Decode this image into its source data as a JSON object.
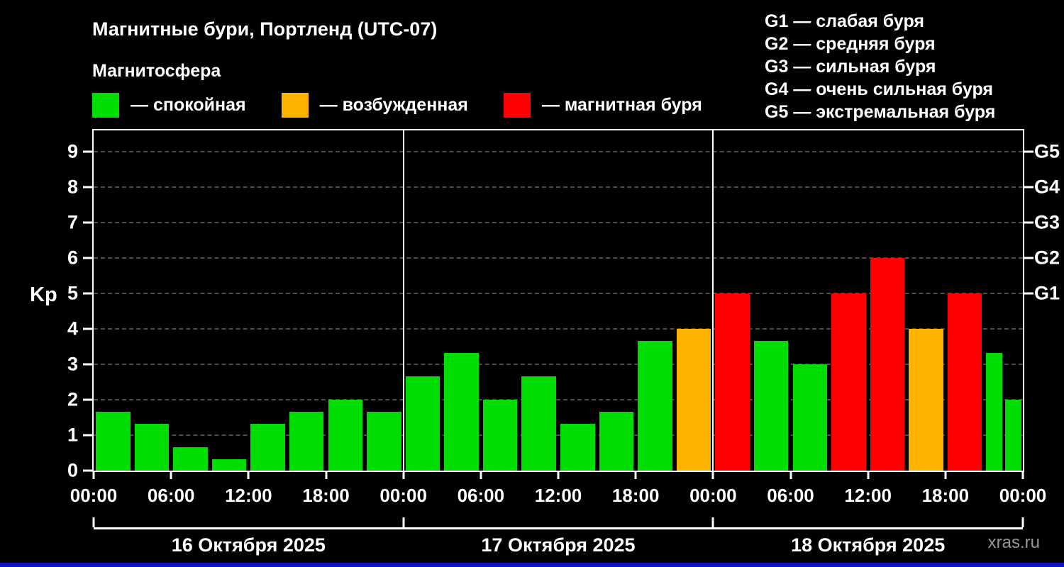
{
  "title": "Магнитные бури, Портленд (UTC-07)",
  "subtitle": "Магнитосфера",
  "legend": {
    "items": [
      {
        "label": "— спокойная",
        "color": "#00dd00"
      },
      {
        "label": "— возбужденная",
        "color": "#ffb300"
      },
      {
        "label": "— магнитная буря",
        "color": "#ff0000"
      }
    ]
  },
  "g_legend": {
    "items": [
      {
        "label": "G1 — слабая буря"
      },
      {
        "label": "G2 — средняя буря"
      },
      {
        "label": "G3 — сильная буря"
      },
      {
        "label": "G4 — очень сильная буря"
      },
      {
        "label": "G5 — экстремальная буря"
      }
    ]
  },
  "watermark": "xras.ru",
  "chart_data": {
    "type": "bar",
    "title": "Магнитные бури, Портленд (UTC-07)",
    "xlabel": "",
    "ylabel": "Kp",
    "ylim": [
      0,
      9.6
    ],
    "grid": "dashed horizontal",
    "yticks": [
      0,
      1,
      2,
      3,
      4,
      5,
      6,
      7,
      8,
      9
    ],
    "right_axis_labels": [
      {
        "value": 5,
        "label": "G1"
      },
      {
        "value": 6,
        "label": "G2"
      },
      {
        "value": 7,
        "label": "G3"
      },
      {
        "value": 8,
        "label": "G4"
      },
      {
        "value": 9,
        "label": "G5"
      }
    ],
    "colors": {
      "green": "#00dd00",
      "orange": "#ffb300",
      "red": "#ff0000",
      "grid": "#4d4d4d",
      "axis": "#ffffff"
    },
    "x_ticks": [
      "00:00",
      "06:00",
      "12:00",
      "18:00",
      "00:00",
      "06:00",
      "12:00",
      "18:00",
      "00:00",
      "06:00",
      "12:00",
      "18:00",
      "00:00"
    ],
    "days": [
      {
        "label": "16 Октября 2025"
      },
      {
        "label": "17 Октября 2025"
      },
      {
        "label": "18 Октября 2025"
      }
    ],
    "bars": [
      {
        "time": "00:00",
        "kp": 1.67,
        "color": "green"
      },
      {
        "time": "03:00",
        "kp": 1.33,
        "color": "green"
      },
      {
        "time": "06:00",
        "kp": 0.67,
        "color": "green"
      },
      {
        "time": "09:00",
        "kp": 0.33,
        "color": "green"
      },
      {
        "time": "12:00",
        "kp": 1.33,
        "color": "green"
      },
      {
        "time": "15:00",
        "kp": 1.67,
        "color": "green"
      },
      {
        "time": "18:00",
        "kp": 2.0,
        "color": "green"
      },
      {
        "time": "21:00",
        "kp": 1.67,
        "color": "green"
      },
      {
        "time": "00:00",
        "kp": 2.67,
        "color": "green"
      },
      {
        "time": "03:00",
        "kp": 3.33,
        "color": "green"
      },
      {
        "time": "06:00",
        "kp": 2.0,
        "color": "green"
      },
      {
        "time": "09:00",
        "kp": 2.67,
        "color": "green"
      },
      {
        "time": "12:00",
        "kp": 1.33,
        "color": "green"
      },
      {
        "time": "15:00",
        "kp": 1.67,
        "color": "green"
      },
      {
        "time": "18:00",
        "kp": 3.67,
        "color": "green"
      },
      {
        "time": "21:00",
        "kp": 4.0,
        "color": "orange"
      },
      {
        "time": "00:00",
        "kp": 5.0,
        "color": "red"
      },
      {
        "time": "03:00",
        "kp": 3.67,
        "color": "green"
      },
      {
        "time": "06:00",
        "kp": 3.0,
        "color": "green"
      },
      {
        "time": "09:00",
        "kp": 5.0,
        "color": "red"
      },
      {
        "time": "12:00",
        "kp": 6.0,
        "color": "red"
      },
      {
        "time": "15:00",
        "kp": 4.0,
        "color": "orange"
      },
      {
        "time": "18:00",
        "kp": 5.0,
        "color": "red"
      },
      {
        "time": "21:00",
        "kp": 3.33,
        "color": "green"
      },
      {
        "time": "00:00",
        "kp": 2.0,
        "color": "green"
      }
    ]
  }
}
